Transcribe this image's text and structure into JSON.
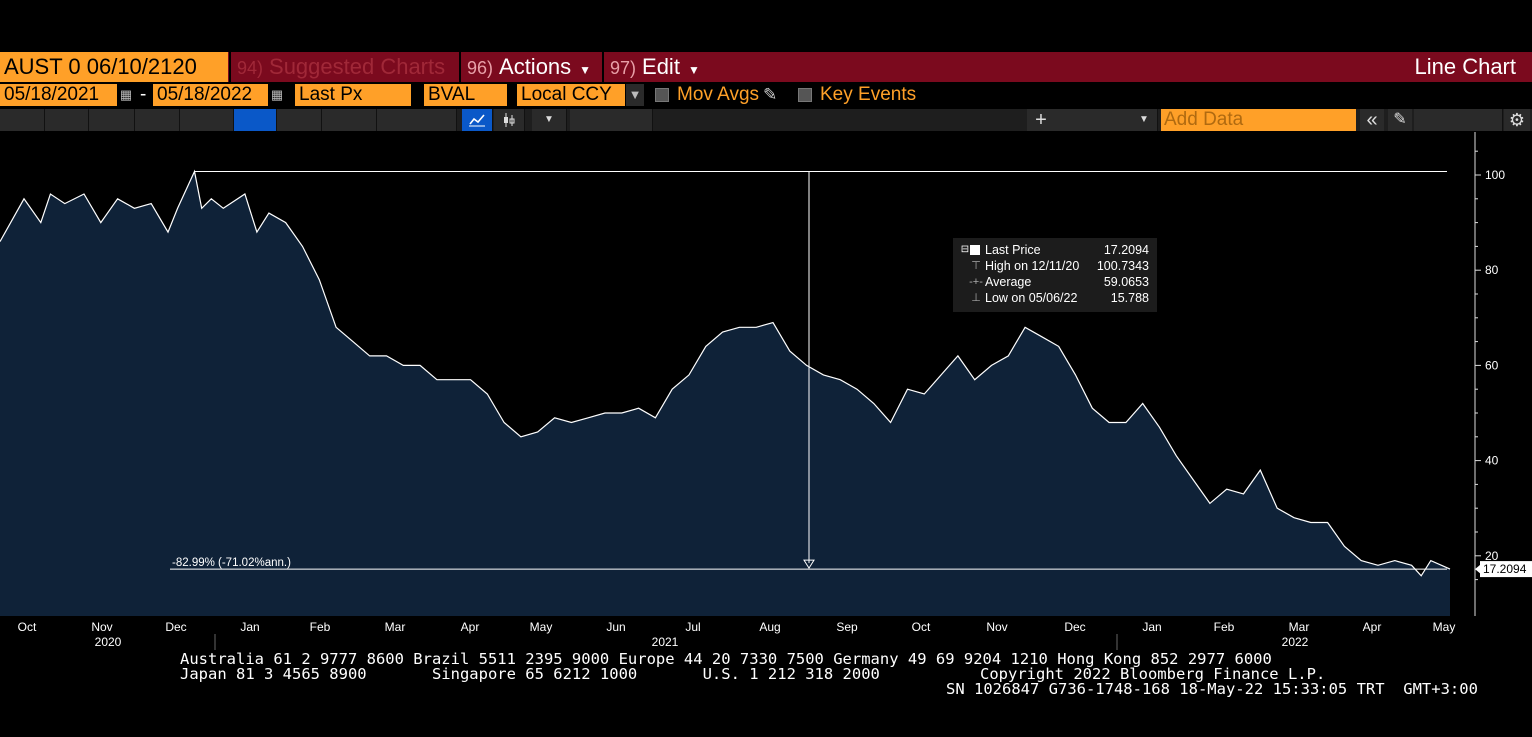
{
  "header": {
    "security": "AUST 0 06/10/2120",
    "menus": [
      {
        "num": "94)",
        "label": "Suggested Charts",
        "dim": true,
        "caret": false
      },
      {
        "num": "96)",
        "label": "Actions",
        "dim": false,
        "caret": true
      },
      {
        "num": "97)",
        "label": "Edit",
        "dim": false,
        "caret": true
      }
    ],
    "chart_type": "Line Chart"
  },
  "controls": {
    "start_date": "05/18/2021",
    "separator": "-",
    "end_date": "05/18/2022",
    "field": "Last Px",
    "source": "BVAL",
    "currency": "Local CCY",
    "mov_avgs_label": "Mov Avgs",
    "key_events_label": "Key Events",
    "add_data_placeholder": "Add Data"
  },
  "legend": {
    "rows": [
      {
        "label": "Last Price",
        "value": "17.2094"
      },
      {
        "label": "High on 12/11/20",
        "value": "100.7343"
      },
      {
        "label": "Average",
        "value": "59.0653"
      },
      {
        "label": "Low on 05/06/22",
        "value": "15.788"
      }
    ]
  },
  "chart_data": {
    "type": "area",
    "ylim": [
      12,
      106
    ],
    "yticks": [
      20,
      40,
      60,
      80,
      100
    ],
    "last_price_tag": "17.2094",
    "annotation": "-82.99% (-71.02%ann.)",
    "high_marker": 100.7343,
    "month_ticks": [
      "Oct",
      "Nov",
      "Dec",
      "Jan",
      "Feb",
      "Mar",
      "Apr",
      "May",
      "Jun",
      "Jul",
      "Aug",
      "Sep",
      "Oct",
      "Nov",
      "Dec",
      "Jan",
      "Feb",
      "Mar",
      "Apr",
      "May"
    ],
    "year_labels": [
      "2020",
      "2021",
      "2022"
    ],
    "x_range": [
      "2020-09-21",
      "2022-05-18"
    ],
    "series": [
      {
        "x": [
          "2020-09-21",
          "2020-10-01",
          "2020-10-08",
          "2020-10-12",
          "2020-10-18",
          "2020-10-26",
          "2020-11-02",
          "2020-11-09",
          "2020-11-16",
          "2020-11-23",
          "2020-11-30",
          "2020-12-04",
          "2020-12-11",
          "2020-12-14",
          "2020-12-18",
          "2020-12-23",
          "2021-01-01",
          "2021-01-06",
          "2021-01-11",
          "2021-01-18",
          "2021-01-25",
          "2021-02-01",
          "2021-02-08",
          "2021-02-15",
          "2021-02-22",
          "2021-03-01",
          "2021-03-08",
          "2021-03-15",
          "2021-03-22",
          "2021-03-29",
          "2021-04-05",
          "2021-04-12",
          "2021-04-19",
          "2021-04-26",
          "2021-05-03",
          "2021-05-10",
          "2021-05-17",
          "2021-05-24",
          "2021-05-31",
          "2021-06-07",
          "2021-06-14",
          "2021-06-21",
          "2021-06-28",
          "2021-07-05",
          "2021-07-12",
          "2021-07-19",
          "2021-07-26",
          "2021-08-02",
          "2021-08-09",
          "2021-08-16",
          "2021-08-23",
          "2021-08-30",
          "2021-09-06",
          "2021-09-13",
          "2021-09-20",
          "2021-09-27",
          "2021-10-04",
          "2021-10-11",
          "2021-10-18",
          "2021-10-25",
          "2021-11-01",
          "2021-11-08",
          "2021-11-15",
          "2021-11-22",
          "2021-11-29",
          "2021-12-06",
          "2021-12-13",
          "2021-12-20",
          "2021-12-27",
          "2022-01-03",
          "2022-01-10",
          "2022-01-17",
          "2022-01-24",
          "2022-01-31",
          "2022-02-07",
          "2022-02-14",
          "2022-02-21",
          "2022-02-28",
          "2022-03-07",
          "2022-03-14",
          "2022-03-21",
          "2022-03-28",
          "2022-04-04",
          "2022-04-11",
          "2022-04-18",
          "2022-04-25",
          "2022-05-02",
          "2022-05-06",
          "2022-05-10",
          "2022-05-18"
        ],
        "y": [
          86,
          95,
          90,
          96,
          94,
          96,
          90,
          95,
          93,
          94,
          88,
          93,
          100.7343,
          93,
          95,
          93,
          96,
          88,
          92,
          90,
          85,
          78,
          68,
          65,
          62,
          62,
          60,
          60,
          57,
          57,
          57,
          54,
          48,
          45,
          46,
          49,
          48,
          49,
          50,
          50,
          51,
          49,
          55,
          58,
          64,
          67,
          68,
          68,
          69,
          63,
          60,
          58,
          57,
          55,
          52,
          48,
          55,
          54,
          58,
          62,
          57,
          60,
          62,
          68,
          66,
          64,
          58,
          51,
          48,
          48,
          52,
          47,
          41,
          36,
          31,
          34,
          33,
          38,
          30,
          28,
          27,
          27,
          22,
          19,
          18,
          19,
          18,
          15.788,
          19,
          17.2094
        ]
      }
    ]
  },
  "footer": {
    "line1": "Australia 61 2 9777 8600 Brazil 5511 2395 9000 Europe 44 20 7330 7500 Germany 49 69 9204 1210 Hong Kong 852 2977 6000",
    "line2a": "Japan 81 3 4565 8900       Singapore 65 6212 1000       U.S. 1 212 318 2000",
    "line2b": "Copyright 2022 Bloomberg Finance L.P.",
    "line3": "SN 1026847 G736-1748-168 18-May-22 15:33:05 TRT  GMT+3:00"
  },
  "colors": {
    "accent": "#ffa028",
    "titlebar": "#7b0a1e",
    "area_fill": "#0f2238",
    "line": "#ffffff",
    "highlight": "#0a58c8"
  }
}
